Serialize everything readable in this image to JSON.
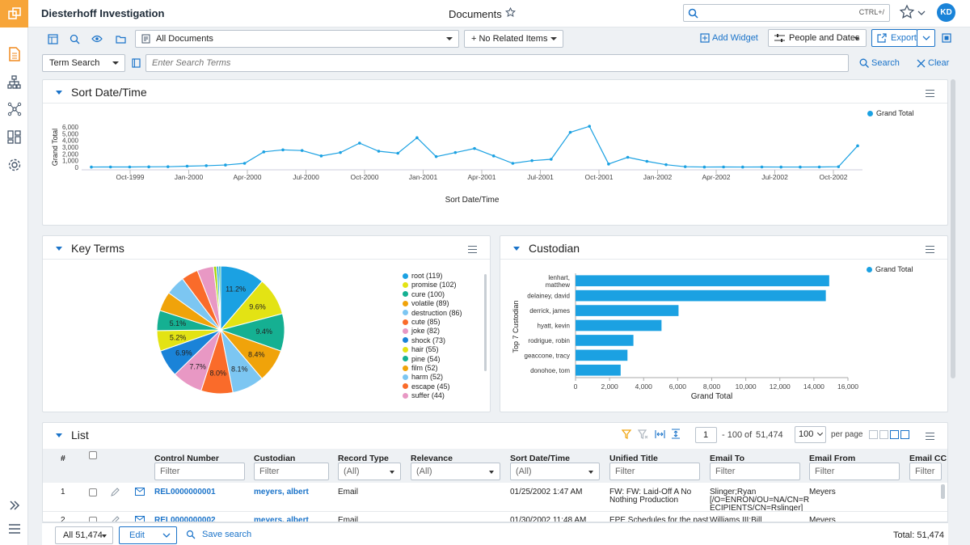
{
  "header": {
    "workspace": "Diesterhoff Investigation",
    "page_title": "Documents",
    "search_hint": "CTRL+/",
    "avatar": "KD"
  },
  "toolbar": {
    "view_select": "All Documents",
    "related_select": "+ No Related Items",
    "add_widget": "Add Widget",
    "people_dates": "People and Dates",
    "export": "Export"
  },
  "search": {
    "type": "Term Search",
    "placeholder": "Enter Search Terms",
    "search_btn": "Search",
    "clear_btn": "Clear"
  },
  "sort_panel": {
    "title": "Sort Date/Time",
    "legend": "Grand Total"
  },
  "key_terms": {
    "title": "Key Terms"
  },
  "custodian": {
    "title": "Custodian",
    "legend": "Grand Total"
  },
  "list": {
    "title": "List",
    "page": "1",
    "range": "- 100",
    "of": "of",
    "total_pages": "51,474",
    "per_page": "100",
    "per_page_label": "per page",
    "columns": {
      "num": "#",
      "control": "Control Number",
      "custodian": "Custodian",
      "record": "Record Type",
      "relevance": "Relevance",
      "sortdate": "Sort Date/Time",
      "unified": "Unified Title",
      "emailto": "Email To",
      "emailfrom": "Email From",
      "emailcc": "Email CC"
    },
    "filter_ph": "Filter",
    "all_opt": "(All)",
    "rows": [
      {
        "n": "1",
        "control": "REL0000000001",
        "custodian": "meyers, albert",
        "record": "Email",
        "date": "01/25/2002 1:47 AM",
        "title1": "FW: FW: Laid-Off A No",
        "title2": "Nothing Production",
        "to1": "Slinger;Ryan",
        "to2": "[/O=ENRON/OU=NA/CN=R",
        "to3": "ECIPIENTS/CN=Rslinger]",
        "from": "Meyers"
      },
      {
        "n": "2",
        "control": "REL0000000002",
        "custodian": "meyers, albert",
        "record": "Email",
        "date": "01/30/2002 11:48 AM",
        "title1": "EPE Schedules for the past",
        "to1": "Williams III;Bill",
        "from": "Meyers"
      }
    ]
  },
  "footer": {
    "all_count": "All 51,474",
    "edit": "Edit",
    "save_search": "Save search",
    "total": "Total: 51,474"
  },
  "chart_data": [
    {
      "type": "line",
      "title": "Sort Date/Time",
      "xlabel": "Sort Date/Time",
      "ylabel": "Grand Total",
      "x_ticks": [
        "Oct-1999",
        "Jan-2000",
        "Apr-2000",
        "Jul-2000",
        "Oct-2000",
        "Jan-2001",
        "Apr-2001",
        "Jul-2001",
        "Oct-2001",
        "Jan-2002",
        "Apr-2002",
        "Jul-2002",
        "Oct-2002"
      ],
      "y_ticks": [
        "0",
        "1,000",
        "2,000",
        "3,000",
        "4,000",
        "5,000",
        "6,000"
      ],
      "ylim": [
        0,
        6000
      ],
      "series": [
        {
          "name": "Grand Total",
          "color": "#1ba1e2",
          "values": [
            50,
            60,
            60,
            80,
            100,
            180,
            250,
            350,
            600,
            2300,
            2600,
            2500,
            1700,
            2200,
            3600,
            2400,
            2100,
            4400,
            1600,
            2200,
            2800,
            1700,
            600,
            1000,
            1200,
            5200,
            6100,
            500,
            1500,
            900,
            400,
            100,
            50,
            60,
            50,
            60,
            50,
            50,
            60,
            100,
            3200
          ]
        }
      ]
    },
    {
      "type": "pie",
      "title": "Key Terms",
      "slices": [
        {
          "label": "root (119)",
          "value": 119,
          "color": "#1ba1e2",
          "pct": "11.2%"
        },
        {
          "label": "promise (102)",
          "value": 102,
          "color": "#e3e314",
          "pct": "9.6%"
        },
        {
          "label": "cure (100)",
          "value": 100,
          "color": "#15b092",
          "pct": "9.4%"
        },
        {
          "label": "volatile (89)",
          "value": 89,
          "color": "#f0a30a",
          "pct": "8.4%"
        },
        {
          "label": "destruction (86)",
          "value": 86,
          "color": "#7cc6f2",
          "pct": "8.1%"
        },
        {
          "label": "cute (85)",
          "value": 85,
          "color": "#fa6b2a",
          "pct": "8.0%"
        },
        {
          "label": "joke (82)",
          "value": 82,
          "color": "#e898c4",
          "pct": "7.7%"
        },
        {
          "label": "shock (73)",
          "value": 73,
          "color": "#1a83d8",
          "pct": "6.9%"
        },
        {
          "label": "hair (55)",
          "value": 55,
          "color": "#e3e314",
          "pct": "5.2%"
        },
        {
          "label": "pine (54)",
          "value": 54,
          "color": "#15b092",
          "pct": "5.1%"
        },
        {
          "label": "film (52)",
          "value": 52,
          "color": "#f0a30a",
          "pct": ""
        },
        {
          "label": "harm (52)",
          "value": 52,
          "color": "#7cc6f2",
          "pct": ""
        },
        {
          "label": "escape (45)",
          "value": 45,
          "color": "#fa6b2a",
          "pct": ""
        },
        {
          "label": "suffer (44)",
          "value": 44,
          "color": "#e898c4",
          "pct": ""
        },
        {
          "label": "",
          "value": 8,
          "color": "#a6d608",
          "pct": ""
        },
        {
          "label": "",
          "value": 6,
          "color": "#1ba1e2",
          "pct": ""
        },
        {
          "label": "",
          "value": 5,
          "color": "#15b092",
          "pct": ""
        }
      ]
    },
    {
      "type": "bar",
      "orientation": "horizontal",
      "title": "Custodian",
      "ylabel": "Top 7 Custodian",
      "xlabel": "Grand Total",
      "xlim": [
        0,
        16000
      ],
      "x_ticks": [
        "0",
        "2,000",
        "4,000",
        "6,000",
        "8,000",
        "10,000",
        "12,000",
        "14,000",
        "16,000"
      ],
      "categories": [
        "lenhart, matthew",
        "delainey, david",
        "derrick, james",
        "hyatt, kevin",
        "rodrigue, robin",
        "geaccone, tracy",
        "donohoe, tom"
      ],
      "series": [
        {
          "name": "Grand Total",
          "color": "#1ba1e2",
          "values": [
            14900,
            14700,
            6050,
            5050,
            3400,
            3050,
            2650
          ]
        }
      ]
    }
  ]
}
